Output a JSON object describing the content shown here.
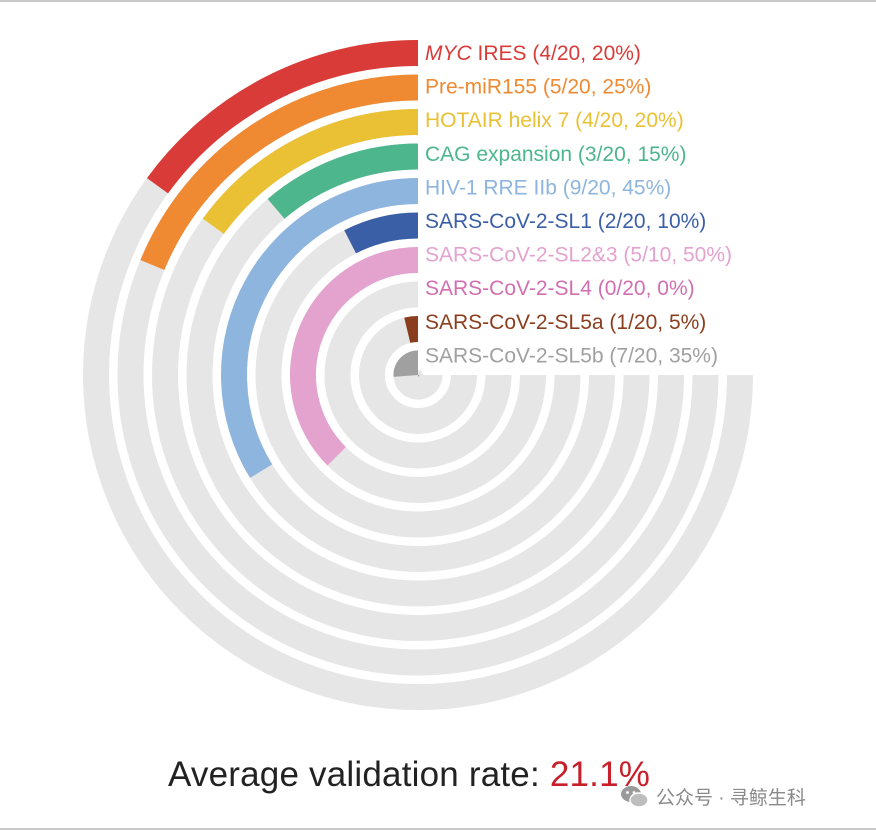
{
  "chart_data": {
    "type": "radial-bar",
    "title": "",
    "max_value": 100,
    "unit": "%",
    "track_color": "#e6e6e6",
    "series": [
      {
        "label": "MYC IRES (4/20, 20%)",
        "italic_prefix": "MYC",
        "value": 20,
        "color": "#d93b39"
      },
      {
        "label": "Pre-miR155 (5/20, 25%)",
        "value": 25,
        "color": "#ef8a33"
      },
      {
        "label": "HOTAIR helix 7 (4/20, 20%)",
        "value": 20,
        "color": "#eac034"
      },
      {
        "label": "CAG expansion (3/20, 15%)",
        "value": 15,
        "color": "#4db68c"
      },
      {
        "label": "HIV-1 RRE IIb (9/20, 45%)",
        "value": 45,
        "color": "#8db5de"
      },
      {
        "label": "SARS-CoV-2-SL1 (2/20, 10%)",
        "value": 10,
        "color": "#3b5fa7"
      },
      {
        "label": "SARS-CoV-2-SL2&3 (5/10, 50%)",
        "value": 50,
        "color": "#e4a2cf"
      },
      {
        "label": "SARS-CoV-2-SL4 (0/20, 0%)",
        "value": 0,
        "color": "#d16fb1"
      },
      {
        "label": "SARS-CoV-2-SL5a (1/20, 5%)",
        "value": 5,
        "color": "#8b3e1e"
      },
      {
        "label": "SARS-CoV-2-SL5b (7/20, 35%)",
        "value": 35,
        "color": "#a0a0a0"
      }
    ],
    "average_label": "Average validation rate:",
    "average_value": "21.1%"
  },
  "watermark": {
    "icon": "wechat-icon",
    "text": "公众号 · 寻鲸生科"
  }
}
